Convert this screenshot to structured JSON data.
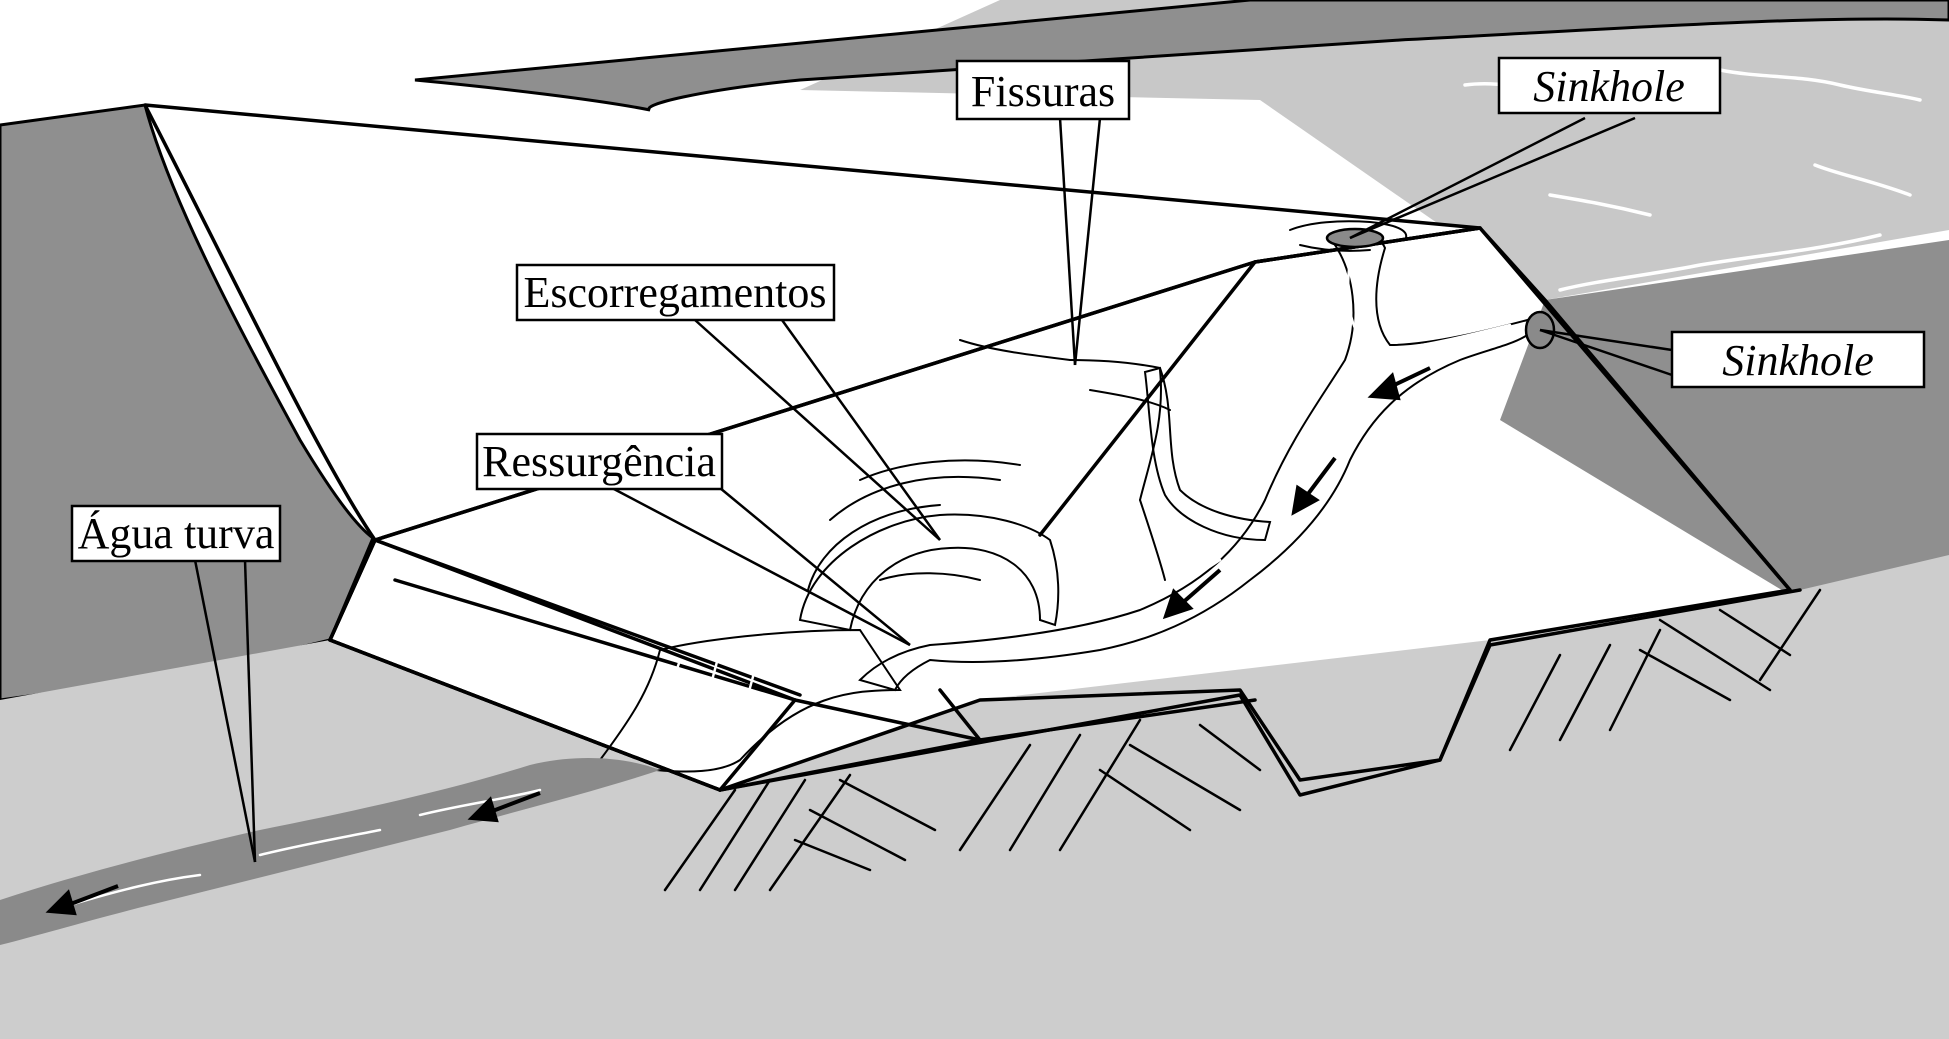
{
  "labels": {
    "fissuras": "Fissuras",
    "sinkhole_top": "Sinkhole",
    "sinkhole_right": "Sinkhole",
    "escorregamentos": "Escorregamentos",
    "ressurgencia": "Ressurgência",
    "agua_turva": "Água turva"
  },
  "colors": {
    "dark_rock": "#8f8f8f",
    "reservoir": "#c8c8c8",
    "ground": "#cdcdcd",
    "dam_face": "#ffffff",
    "seepage_water": "#8a8a8a",
    "outline": "#000000"
  }
}
